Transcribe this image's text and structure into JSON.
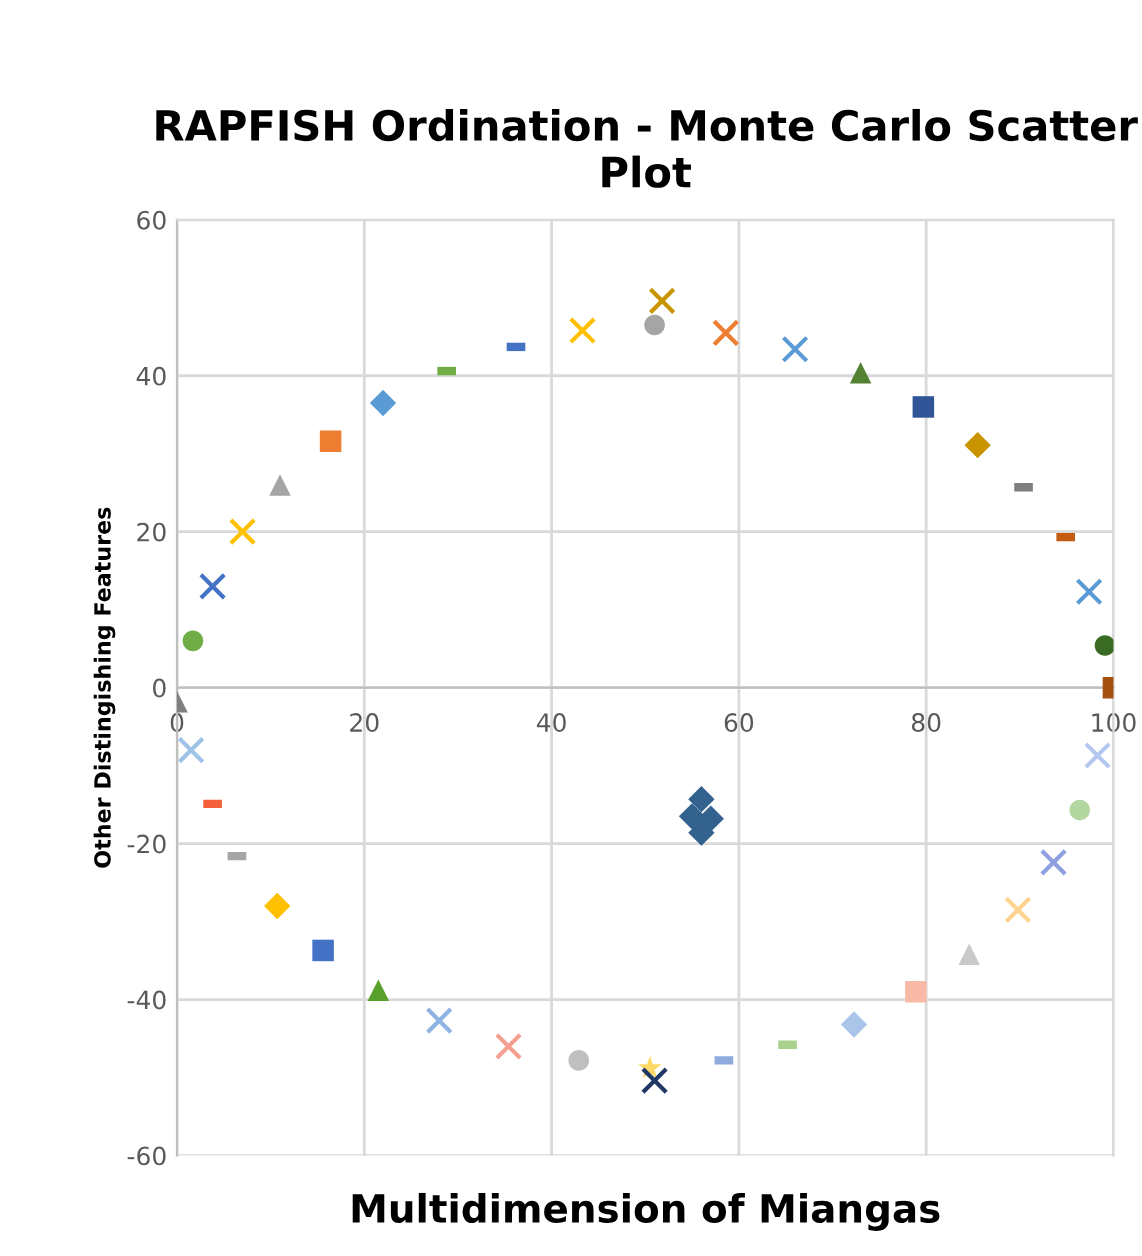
{
  "chart_data": {
    "type": "scatter",
    "title": "RAPFISH Ordination - Monte Carlo Scatter Plot",
    "xlabel": "Multidimension of Miangas",
    "ylabel": "Other Distingishing Features",
    "xlim": [
      0,
      100
    ],
    "ylim": [
      -60,
      60
    ],
    "xticks": [
      0,
      20,
      40,
      60,
      80,
      100
    ],
    "yticks": [
      -60,
      -40,
      -20,
      0,
      20,
      40,
      60
    ],
    "grid": true,
    "series": [
      {
        "color": "#7f7f7f",
        "marker": "triangle",
        "x": [
          0
        ],
        "values": [
          -1.8
        ]
      },
      {
        "color": "#70ad47",
        "marker": "circle",
        "x": [
          1.7
        ],
        "values": [
          6
        ]
      },
      {
        "color": "#4472c4",
        "marker": "cross",
        "x": [
          3.8
        ],
        "values": [
          13
        ]
      },
      {
        "color": "#ffc000",
        "marker": "cross",
        "x": [
          7
        ],
        "values": [
          20
        ]
      },
      {
        "color": "#a5a5a5",
        "marker": "triangle",
        "x": [
          11
        ],
        "values": [
          26
        ]
      },
      {
        "color": "#ed7d31",
        "marker": "square",
        "x": [
          16.4
        ],
        "values": [
          31.6
        ]
      },
      {
        "color": "#5b9bd5",
        "marker": "diamond",
        "x": [
          22
        ],
        "values": [
          36.5
        ]
      },
      {
        "color": "#70ad47",
        "x": [
          28.8
        ],
        "values": [
          40.6
        ]
      },
      {
        "color": "#4472c4",
        "x": [
          36.2
        ],
        "values": [
          43.7
        ]
      },
      {
        "color": "#ffc000",
        "marker": "cross",
        "x": [
          43.3
        ],
        "values": [
          45.8
        ]
      },
      {
        "color": "#a5a5a5",
        "marker": "circle",
        "x": [
          51
        ],
        "values": [
          46.5
        ]
      },
      {
        "color": "#c89400",
        "marker": "cross",
        "x": [
          51.8
        ],
        "values": [
          49.6
        ]
      },
      {
        "color": "#ed7d31",
        "marker": "cross",
        "x": [
          58.6
        ],
        "values": [
          45.5
        ]
      },
      {
        "color": "#5b9bd5",
        "marker": "cross",
        "x": [
          66
        ],
        "values": [
          43.4
        ]
      },
      {
        "color": "#548235",
        "marker": "triangle",
        "x": [
          73
        ],
        "values": [
          40.4
        ]
      },
      {
        "color": "#2f5597",
        "marker": "square",
        "x": [
          79.7
        ],
        "values": [
          36
        ]
      },
      {
        "color": "#c89400",
        "marker": "diamond",
        "x": [
          85.5
        ],
        "values": [
          31.1
        ]
      },
      {
        "color": "#7f7f7f",
        "x": [
          90.4
        ],
        "values": [
          25.7
        ]
      },
      {
        "color": "#c55a11",
        "x": [
          94.9
        ],
        "values": [
          19.3
        ]
      },
      {
        "color": "#5b9bd5",
        "marker": "cross",
        "x": [
          97.4
        ],
        "values": [
          12.3
        ]
      },
      {
        "color": "#3a6b23",
        "marker": "circle",
        "x": [
          99.1
        ],
        "values": [
          5.4
        ]
      },
      {
        "color": "#a5500f",
        "marker": "square",
        "x": [
          100
        ],
        "values": [
          0
        ]
      },
      {
        "color": "#9dc3e6",
        "marker": "cross",
        "x": [
          1.5
        ],
        "values": [
          -8
        ]
      },
      {
        "color": "#f4603a",
        "x": [
          3.8
        ],
        "values": [
          -14.9
        ]
      },
      {
        "color": "#a5a5a5",
        "x": [
          6.4
        ],
        "values": [
          -21.6
        ]
      },
      {
        "color": "#ffc000",
        "marker": "diamond",
        "x": [
          10.7
        ],
        "values": [
          -28
        ]
      },
      {
        "color": "#4472c4",
        "marker": "square",
        "x": [
          15.6
        ],
        "values": [
          -33.7
        ]
      },
      {
        "color": "#5aa02c",
        "marker": "triangle",
        "x": [
          21.5
        ],
        "values": [
          -38.8
        ]
      },
      {
        "color": "#8fb4e3",
        "marker": "cross",
        "x": [
          28
        ],
        "values": [
          -42.7
        ]
      },
      {
        "color": "#f4a090",
        "marker": "cross",
        "x": [
          35.4
        ],
        "values": [
          -46
        ]
      },
      {
        "color": "#bfbfbf",
        "marker": "circle",
        "x": [
          42.9
        ],
        "values": [
          -47.8
        ]
      },
      {
        "color": "#ffd966",
        "marker": "star",
        "x": [
          50.5
        ],
        "values": [
          -48.8
        ]
      },
      {
        "color": "#203864",
        "marker": "cross",
        "x": [
          51
        ],
        "values": [
          -50.4
        ]
      },
      {
        "color": "#8faadc",
        "x": [
          58.4
        ],
        "values": [
          -47.8
        ]
      },
      {
        "color": "#a9d18e",
        "x": [
          65.2
        ],
        "values": [
          -45.8
        ]
      },
      {
        "color": "#a9c6ea",
        "marker": "diamond",
        "x": [
          72.3
        ],
        "values": [
          -43.2
        ]
      },
      {
        "color": "#f8b9a6",
        "marker": "square",
        "x": [
          78.9
        ],
        "values": [
          -39
        ]
      },
      {
        "color": "#c9c9c9",
        "marker": "triangle",
        "x": [
          84.6
        ],
        "values": [
          -34.2
        ]
      },
      {
        "color": "#ffd28f",
        "marker": "cross",
        "x": [
          89.8
        ],
        "values": [
          -28.5
        ]
      },
      {
        "color": "#8f9fe0",
        "marker": "cross",
        "x": [
          93.6
        ],
        "values": [
          -22.4
        ]
      },
      {
        "color": "#b4d6a0",
        "marker": "circle",
        "x": [
          96.4
        ],
        "values": [
          -15.7
        ]
      },
      {
        "color": "#b4c7f0",
        "marker": "cross",
        "x": [
          98.3
        ],
        "values": [
          -8.7
        ]
      },
      {
        "color": "#33628f",
        "marker": "diamond",
        "x": [
          56,
          55,
          57,
          56
        ],
        "values": [
          -14.3,
          -16.5,
          -16.8,
          -18.6
        ]
      }
    ]
  }
}
